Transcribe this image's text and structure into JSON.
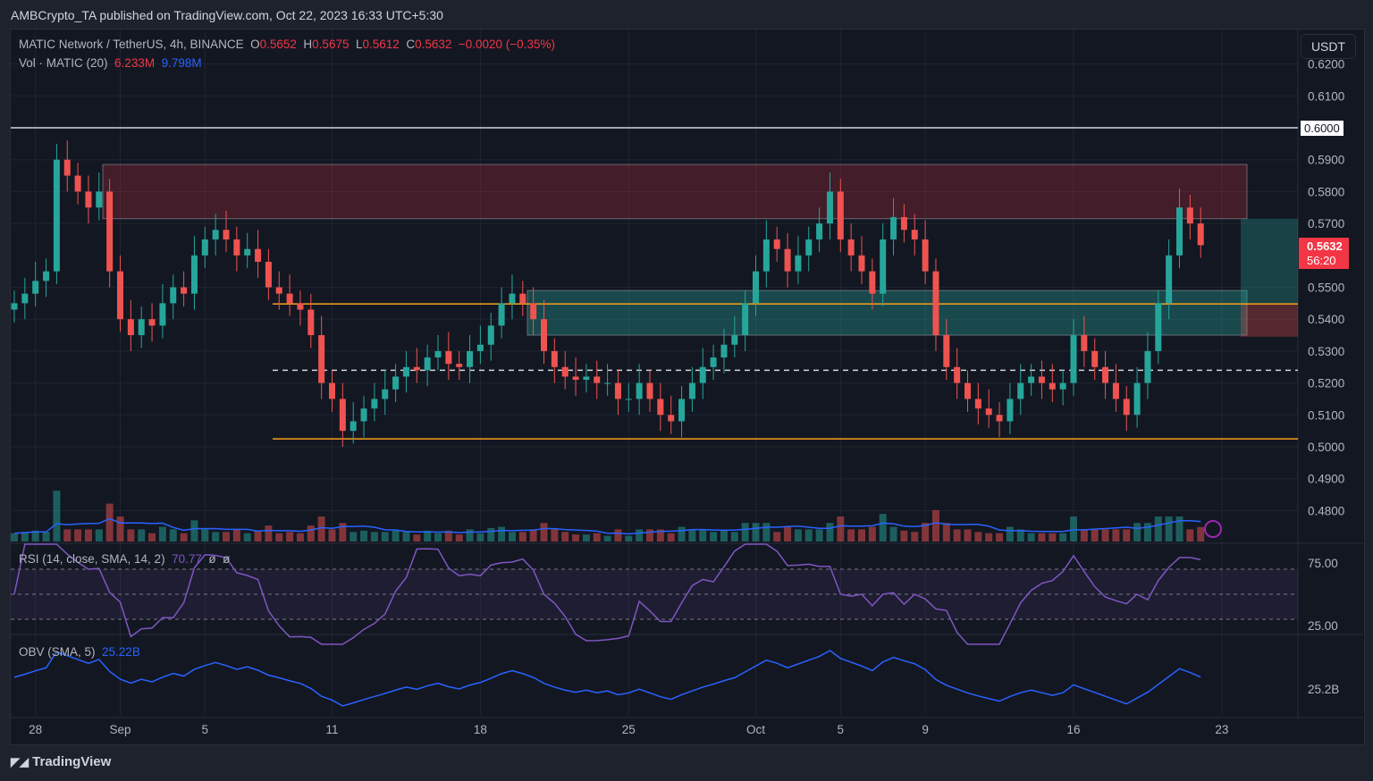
{
  "header": {
    "published": "AMBCrypto_TA published on TradingView.com, Oct 22, 2023 16:33 UTC+5:30"
  },
  "legend": {
    "symbol": "MATIC Network / TetherUS, 4h, BINANCE",
    "o_label": "O",
    "o": "0.5652",
    "h_label": "H",
    "h": "0.5675",
    "l_label": "L",
    "l": "0.5612",
    "c_label": "C",
    "c": "0.5632",
    "change": "−0.0020 (−0.35%)",
    "vol_label": "Vol · MATIC (20)",
    "vol": "6.233M",
    "vol_ma": "9.798M",
    "rsi_label": "RSI (14, close, SMA, 14, 2)",
    "rsi": "70.77",
    "rsi_na1": "ø",
    "rsi_na2": "ø",
    "obv_label": "OBV (SMA, 5)",
    "obv": "25.22B"
  },
  "currency_button": "USDT",
  "price_tag": {
    "price": "0.5632",
    "countdown": "56:20"
  },
  "level_tag": "0.6000",
  "rsi_axis": [
    "75.00",
    "25.00"
  ],
  "obv_axis": "25.2B",
  "footer": {
    "logo": "TradingView"
  },
  "colors": {
    "up": "#26a69a",
    "down": "#ef5350",
    "bg": "#131722",
    "orange": "#f7a21b",
    "rsi": "#7e57c2",
    "obv": "#2962ff"
  },
  "chart_data": {
    "type": "candlestick",
    "title": "MATIC Network / TetherUS, 4h, BINANCE",
    "interval_of_series": "12h approx closes",
    "start": "Aug 27",
    "closes": [
      0.545,
      0.548,
      0.552,
      0.555,
      0.59,
      0.585,
      0.58,
      0.575,
      0.58,
      0.555,
      0.54,
      0.535,
      0.54,
      0.538,
      0.545,
      0.55,
      0.548,
      0.56,
      0.565,
      0.568,
      0.565,
      0.56,
      0.562,
      0.558,
      0.55,
      0.548,
      0.545,
      0.543,
      0.535,
      0.52,
      0.515,
      0.505,
      0.508,
      0.512,
      0.515,
      0.518,
      0.522,
      0.525,
      0.524,
      0.528,
      0.53,
      0.526,
      0.525,
      0.53,
      0.532,
      0.538,
      0.545,
      0.548,
      0.545,
      0.54,
      0.53,
      0.525,
      0.522,
      0.521,
      0.522,
      0.52,
      0.52,
      0.515,
      0.515,
      0.52,
      0.515,
      0.51,
      0.508,
      0.515,
      0.52,
      0.525,
      0.528,
      0.532,
      0.535,
      0.545,
      0.555,
      0.565,
      0.562,
      0.555,
      0.56,
      0.565,
      0.57,
      0.58,
      0.565,
      0.56,
      0.555,
      0.548,
      0.565,
      0.572,
      0.568,
      0.565,
      0.555,
      0.535,
      0.525,
      0.52,
      0.515,
      0.512,
      0.51,
      0.508,
      0.515,
      0.52,
      0.522,
      0.52,
      0.518,
      0.52,
      0.535,
      0.53,
      0.525,
      0.52,
      0.515,
      0.51,
      0.52,
      0.53,
      0.545,
      0.56,
      0.575,
      0.57,
      0.5632
    ],
    "y_ticks": [
      "0.6200",
      "0.6100",
      "0.5900",
      "0.5800",
      "0.5700",
      "0.5500",
      "0.5400",
      "0.5300",
      "0.5200",
      "0.5100",
      "0.5000",
      "0.4900",
      "0.4800"
    ],
    "y_tick_values": [
      0.62,
      0.61,
      0.59,
      0.58,
      0.57,
      0.55,
      0.54,
      0.53,
      0.52,
      0.51,
      0.5,
      0.49,
      0.48
    ],
    "ylim": [
      0.474,
      0.628
    ],
    "x_ticks": [
      "28",
      "Sep",
      "5",
      "11",
      "18",
      "25",
      "Oct",
      "5",
      "9",
      "16",
      "23"
    ],
    "x_tick_days": [
      1,
      5,
      9,
      15,
      22,
      29,
      35,
      39,
      43,
      50,
      57
    ],
    "levels": {
      "resistance": 0.6,
      "orange_upper": 0.5448,
      "orange_lower": 0.5025,
      "dashed_mid": 0.524
    },
    "zones": [
      {
        "name": "supply",
        "from": 0.5715,
        "to": 0.5885,
        "color": "#f23645"
      },
      {
        "name": "demand",
        "from": 0.535,
        "to": 0.549,
        "color": "#26a69a"
      }
    ],
    "position": {
      "target": 0.5715,
      "entry": 0.545,
      "stop": 0.5345
    }
  }
}
